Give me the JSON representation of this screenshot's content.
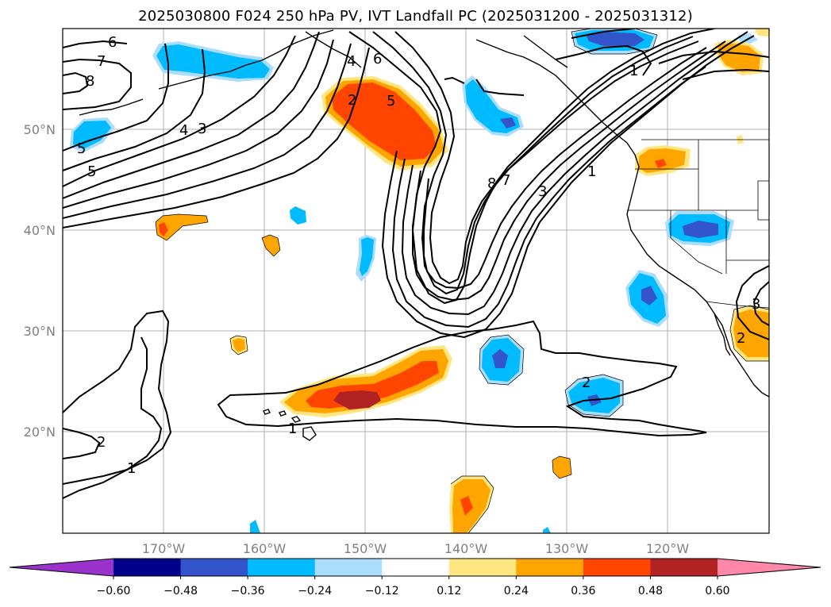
{
  "title": "2025030800 F024 250 hPa PV, IVT Landfall PC (2025031200 - 2025031312)",
  "lat_labels": [
    "50°N",
    "40°N",
    "30°N",
    "20°N"
  ],
  "lon_labels": [
    "170°W",
    "160°W",
    "150°W",
    "140°W",
    "130°W",
    "120°W"
  ],
  "colorbar": {
    "ticks": [
      "−0.60",
      "−0.48",
      "−0.36",
      "−0.24",
      "−0.12",
      "0.12",
      "0.24",
      "0.36",
      "0.48",
      "0.60"
    ],
    "colors": [
      "#9933cc",
      "#000088",
      "#3355cc",
      "#00bbff",
      "#aaddff",
      "#ffffff",
      "#ffe680",
      "#ffa500",
      "#ff4500",
      "#b22222",
      "#ff88aa"
    ]
  },
  "contour_labels": [
    "6",
    "7",
    "8",
    "4",
    "3",
    "5",
    "5",
    "2",
    "4",
    "5",
    "6",
    "8",
    "7",
    "3",
    "1",
    "1",
    "2",
    "1",
    "2",
    "1",
    "3",
    "2"
  ],
  "colors": {
    "pos_light": "#ffe680",
    "pos_mid": "#ffa500",
    "pos_strong": "#ff4500",
    "pos_max": "#b22222",
    "neg_light": "#aaddff",
    "neg_mid": "#00bbff",
    "neg_strong": "#3355cc"
  }
}
